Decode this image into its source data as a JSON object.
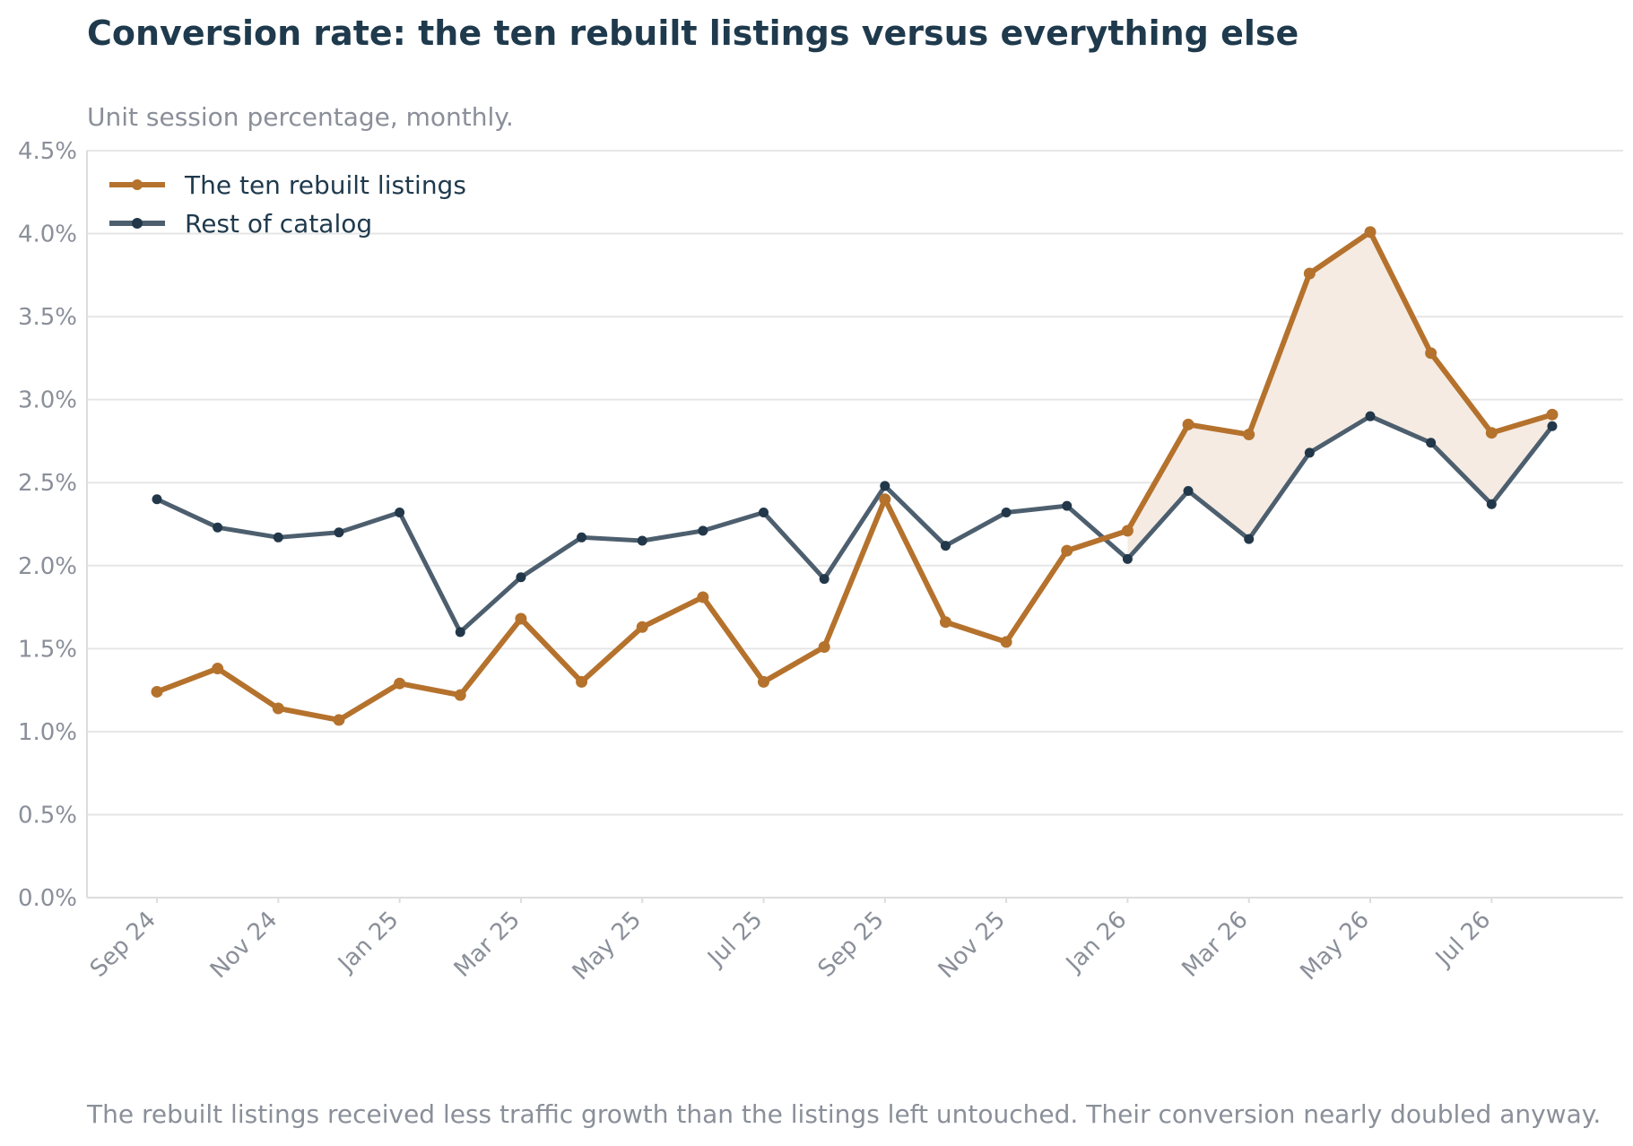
{
  "header": {
    "title": "Conversion rate: the ten rebuilt listings versus everything else",
    "subtitle": "Unit session percentage, monthly."
  },
  "footer": {
    "note": "The rebuilt listings received less traffic growth than the listings left untouched. Their conversion nearly doubled anyway."
  },
  "colors": {
    "title": "#1f3a4d",
    "muted": "#8a8f99",
    "grid": "#e6e6e6",
    "axis": "#dddddd",
    "rebuilt": "#b5722d",
    "rest": "#4d5f6e",
    "rest_marker": "#22384a",
    "highlight_fill": "#f5ebe2"
  },
  "chart_data": {
    "type": "line",
    "x": [
      "Sep 24",
      "Oct 24",
      "Nov 24",
      "Dec 24",
      "Jan 25",
      "Feb 25",
      "Mar 25",
      "Apr 25",
      "May 25",
      "Jun 25",
      "Jul 25",
      "Aug 25",
      "Sep 25",
      "Oct 25",
      "Nov 25",
      "Dec 25",
      "Jan 26",
      "Feb 26",
      "Mar 26",
      "Apr 26",
      "May 26",
      "Jun 26",
      "Jul 26",
      "Aug 26"
    ],
    "x_tick_labels": [
      "Sep 24",
      "Nov 24",
      "Jan 25",
      "Mar 25",
      "May 25",
      "Jul 25",
      "Sep 25",
      "Nov 25",
      "Jan 26",
      "Mar 26",
      "May 26",
      "Jul 26"
    ],
    "y_tick_labels": [
      "0.0%",
      "0.5%",
      "1.0%",
      "1.5%",
      "2.0%",
      "2.5%",
      "3.0%",
      "3.5%",
      "4.0%",
      "4.5%"
    ],
    "ylim": [
      0,
      4.5
    ],
    "y_unit": "%",
    "grid": true,
    "legend_position": "top-left",
    "series": [
      {
        "name": "The ten rebuilt listings",
        "values": [
          1.24,
          1.38,
          1.14,
          1.07,
          1.29,
          1.22,
          1.68,
          1.3,
          1.63,
          1.81,
          1.3,
          1.51,
          2.4,
          1.66,
          1.54,
          2.09,
          2.21,
          2.85,
          2.79,
          3.76,
          4.01,
          3.28,
          2.8,
          2.91
        ]
      },
      {
        "name": "Rest of catalog",
        "values": [
          2.4,
          2.23,
          2.17,
          2.2,
          2.32,
          1.6,
          1.93,
          2.17,
          2.15,
          2.21,
          2.32,
          1.92,
          2.48,
          2.12,
          2.32,
          2.36,
          2.04,
          2.45,
          2.16,
          2.68,
          2.9,
          2.74,
          2.37,
          2.84
        ]
      }
    ],
    "shaded_gap_from": "Jan 26"
  }
}
